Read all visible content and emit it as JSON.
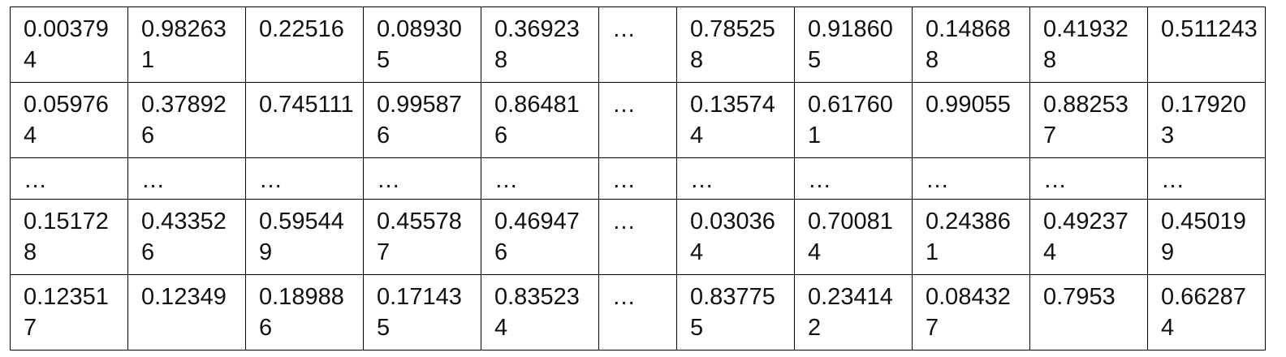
{
  "table": {
    "rows": [
      [
        "0.003794",
        "0.982631",
        "0.22516",
        "0.089305",
        "0.369238",
        "…",
        "0.785258",
        "0.918605",
        "0.148688",
        "0.419328",
        "0.511243"
      ],
      [
        "0.059764",
        "0.378926",
        "0.745111",
        "0.995876",
        "0.864816",
        "…",
        "0.135744",
        "0.617601",
        "0.99055",
        "0.882537",
        "0.179203"
      ],
      [
        "…",
        "…",
        "…",
        "…",
        "…",
        "…",
        "…",
        "…",
        "…",
        "…",
        "…"
      ],
      [
        "0.151728",
        "0.433526",
        "0.595449",
        "0.455787",
        "0.469476",
        "…",
        "0.030364",
        "0.700814",
        "0.243861",
        "0.492374",
        "0.450199"
      ],
      [
        "0.123517",
        "0.12349",
        "0.189886",
        "0.171435",
        "0.835234",
        "…",
        "0.837755",
        "0.234142",
        "0.084327",
        "0.7953",
        "0.662874"
      ]
    ]
  }
}
